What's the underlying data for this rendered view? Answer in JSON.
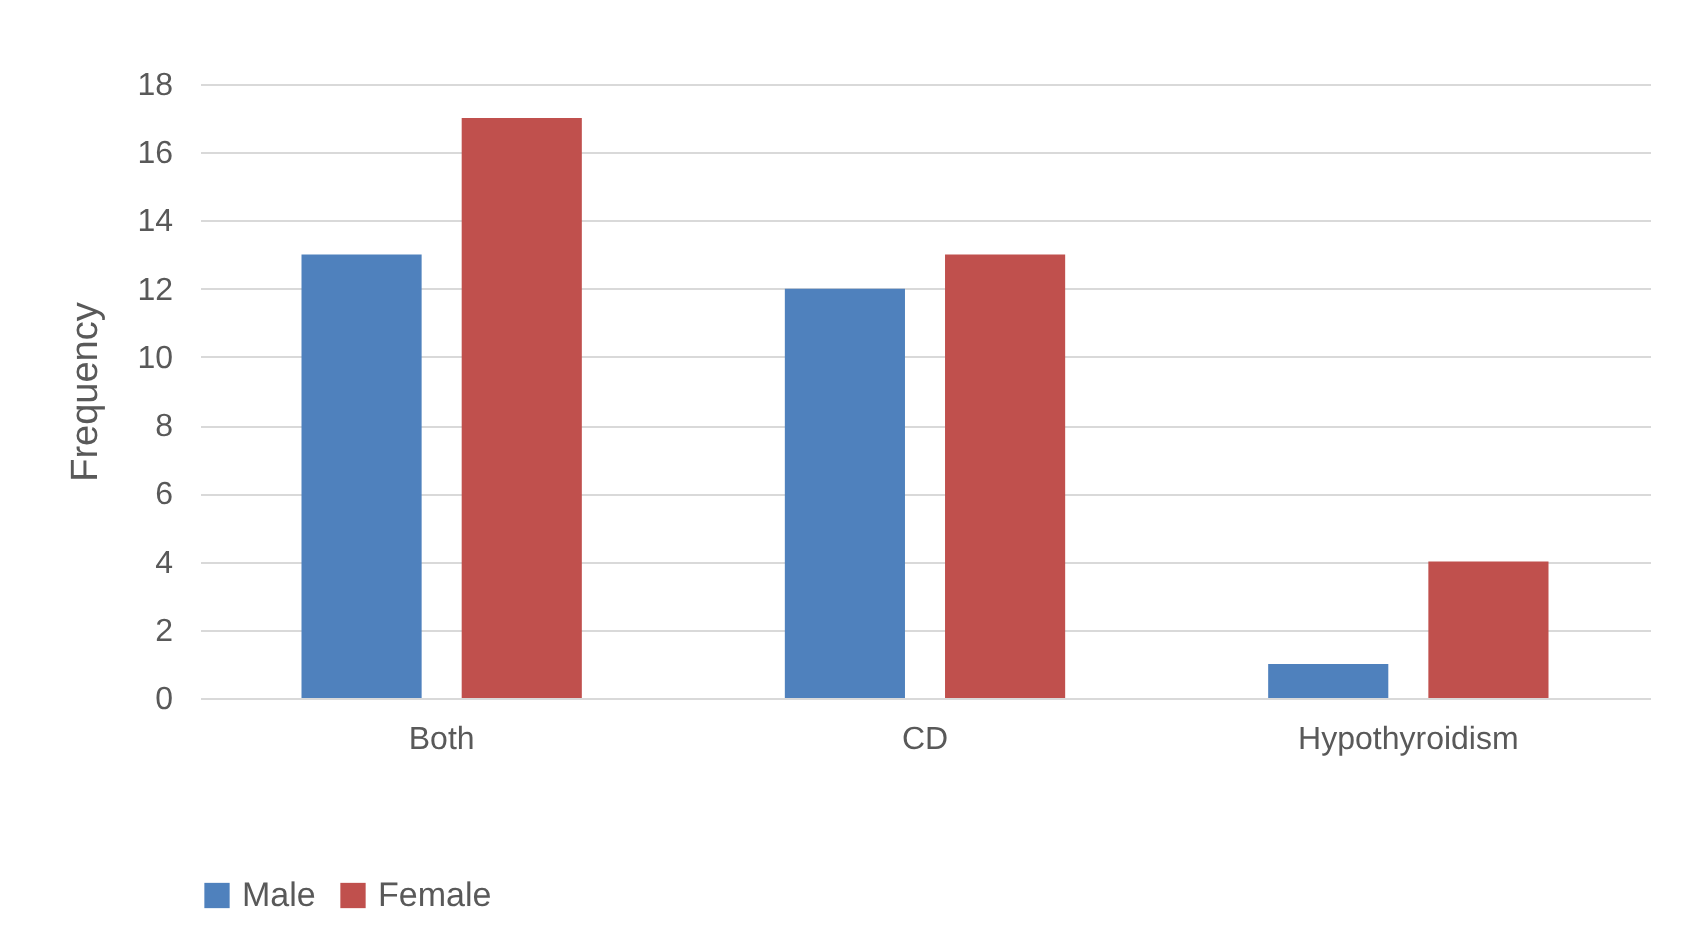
{
  "chart_data": {
    "type": "bar",
    "ylabel": "Frequency",
    "categories": [
      "Both",
      "CD",
      "Hypothyroidism"
    ],
    "series": [
      {
        "name": "Male",
        "color": "#4f81bd",
        "values": [
          13,
          12,
          1
        ]
      },
      {
        "name": "Female",
        "color": "#c0504d",
        "values": [
          17,
          13,
          4
        ]
      }
    ],
    "ylim": [
      0,
      18
    ],
    "yticks": [
      0,
      2,
      4,
      6,
      8,
      10,
      12,
      14,
      16,
      18
    ],
    "grid": "y",
    "legend": "bottom"
  }
}
